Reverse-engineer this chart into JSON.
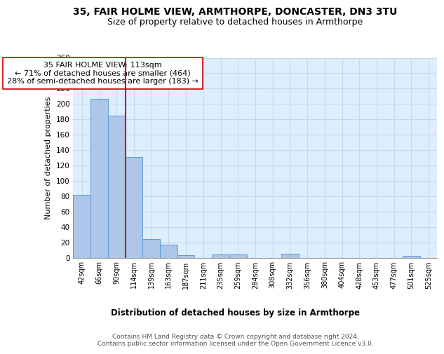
{
  "title1": "35, FAIR HOLME VIEW, ARMTHORPE, DONCASTER, DN3 3TU",
  "title2": "Size of property relative to detached houses in Armthorpe",
  "xlabel": "Distribution of detached houses by size in Armthorpe",
  "ylabel": "Number of detached properties",
  "bin_labels": [
    "42sqm",
    "66sqm",
    "90sqm",
    "114sqm",
    "139sqm",
    "163sqm",
    "187sqm",
    "211sqm",
    "235sqm",
    "259sqm",
    "284sqm",
    "308sqm",
    "332sqm",
    "356sqm",
    "380sqm",
    "404sqm",
    "428sqm",
    "453sqm",
    "477sqm",
    "501sqm",
    "525sqm"
  ],
  "bin_counts": [
    82,
    207,
    185,
    131,
    24,
    17,
    3,
    0,
    4,
    4,
    0,
    0,
    5,
    0,
    0,
    0,
    0,
    0,
    0,
    2,
    0
  ],
  "bar_color": "#aec6e8",
  "bar_edge_color": "#5b9bd5",
  "vline_x_index": 2.5,
  "vline_color": "#cc0000",
  "annotation_text": "35 FAIR HOLME VIEW: 113sqm\n← 71% of detached houses are smaller (464)\n28% of semi-detached houses are larger (183) →",
  "annotation_box_color": "white",
  "annotation_box_edge_color": "#cc0000",
  "ylim": [
    0,
    260
  ],
  "yticks": [
    0,
    20,
    40,
    60,
    80,
    100,
    120,
    140,
    160,
    180,
    200,
    220,
    240,
    260
  ],
  "grid_color": "#c8d8e8",
  "background_color": "#ddeeff",
  "footer_text": "Contains HM Land Registry data © Crown copyright and database right 2024.\nContains public sector information licensed under the Open Government Licence v3.0.",
  "title1_fontsize": 10,
  "title2_fontsize": 9,
  "xlabel_fontsize": 8.5,
  "ylabel_fontsize": 8,
  "annotation_fontsize": 8,
  "footer_fontsize": 6.5,
  "tick_fontsize": 7,
  "ytick_fontsize": 7.5
}
